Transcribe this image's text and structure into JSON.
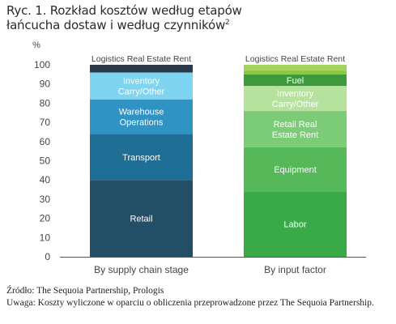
{
  "figure": {
    "title_line1": "Ryc. 1. Rozkład kosztów według etapów",
    "title_line2": "łańcucha dostaw i według czynników",
    "title_sup": "2"
  },
  "footnotes": {
    "source": "Źródło: The Sequoia Partnership, Prologis",
    "note": "Uwaga: Koszty wyliczone w oparciu o obliczenia przeprowadzone przez The Sequoia Partnership."
  },
  "chart_data": {
    "type": "bar",
    "stacked": true,
    "ylabel": "%",
    "ylim": [
      0,
      100
    ],
    "yticks": [
      0,
      10,
      20,
      30,
      40,
      50,
      60,
      70,
      80,
      90,
      100
    ],
    "grid": false,
    "categories": [
      "By supply chain stage",
      "By input factor"
    ],
    "bars": [
      {
        "category": "By supply chain stage",
        "top_label": "Logistics Real Estate Rent",
        "segments": [
          {
            "label": "Retail",
            "from": 0,
            "to": 40,
            "color": "#234f66",
            "text_color": "#ffffff"
          },
          {
            "label": "Transport",
            "from": 40,
            "to": 64,
            "color": "#1f6e95",
            "text_color": "#ffffff"
          },
          {
            "label": "Warehouse Operations",
            "lines": [
              "Warehouse",
              "Operations"
            ],
            "from": 64,
            "to": 82,
            "color": "#2f93c4",
            "text_color": "#ffffff"
          },
          {
            "label": "Inventory Carry/Other",
            "lines": [
              "Inventory",
              "Carry/Other"
            ],
            "from": 82,
            "to": 96,
            "color": "#7fd4f1",
            "text_color": "#ffffff"
          },
          {
            "label": "Logistics Real Estate Rent",
            "from": 96,
            "to": 100,
            "color": "#2a3a4a",
            "text_color": "#ffffff"
          }
        ]
      },
      {
        "category": "By input factor",
        "top_label": "Logistics Real Estate Rent",
        "segments": [
          {
            "label": "Labor",
            "from": 0,
            "to": 34,
            "color": "#3aaa48",
            "text_color": "#ffffff"
          },
          {
            "label": "Equipment",
            "from": 34,
            "to": 57,
            "color": "#55b95a",
            "text_color": "#ffffff"
          },
          {
            "label": "Retail Real Estate Rent",
            "lines": [
              "Retail Real",
              "Estate Rent"
            ],
            "from": 57,
            "to": 76,
            "color": "#7ccb77",
            "text_color": "#ffffff"
          },
          {
            "label": "Inventory Carry/Other",
            "lines": [
              "Inventory",
              "Carry/Other"
            ],
            "from": 76,
            "to": 89,
            "color": "#b5e39e",
            "text_color": "#ffffff"
          },
          {
            "label": "Fuel",
            "from": 89,
            "to": 95,
            "color": "#3d9a3c",
            "text_color": "#ffffff"
          },
          {
            "label": "Logistics Real Estate Rent",
            "from": 95,
            "to": 97,
            "color": "#8cc641",
            "text_color": "#ffffff"
          },
          {
            "label": "",
            "from": 97,
            "to": 100,
            "color": "#a3d35a",
            "text_color": "#ffffff"
          }
        ]
      }
    ]
  }
}
